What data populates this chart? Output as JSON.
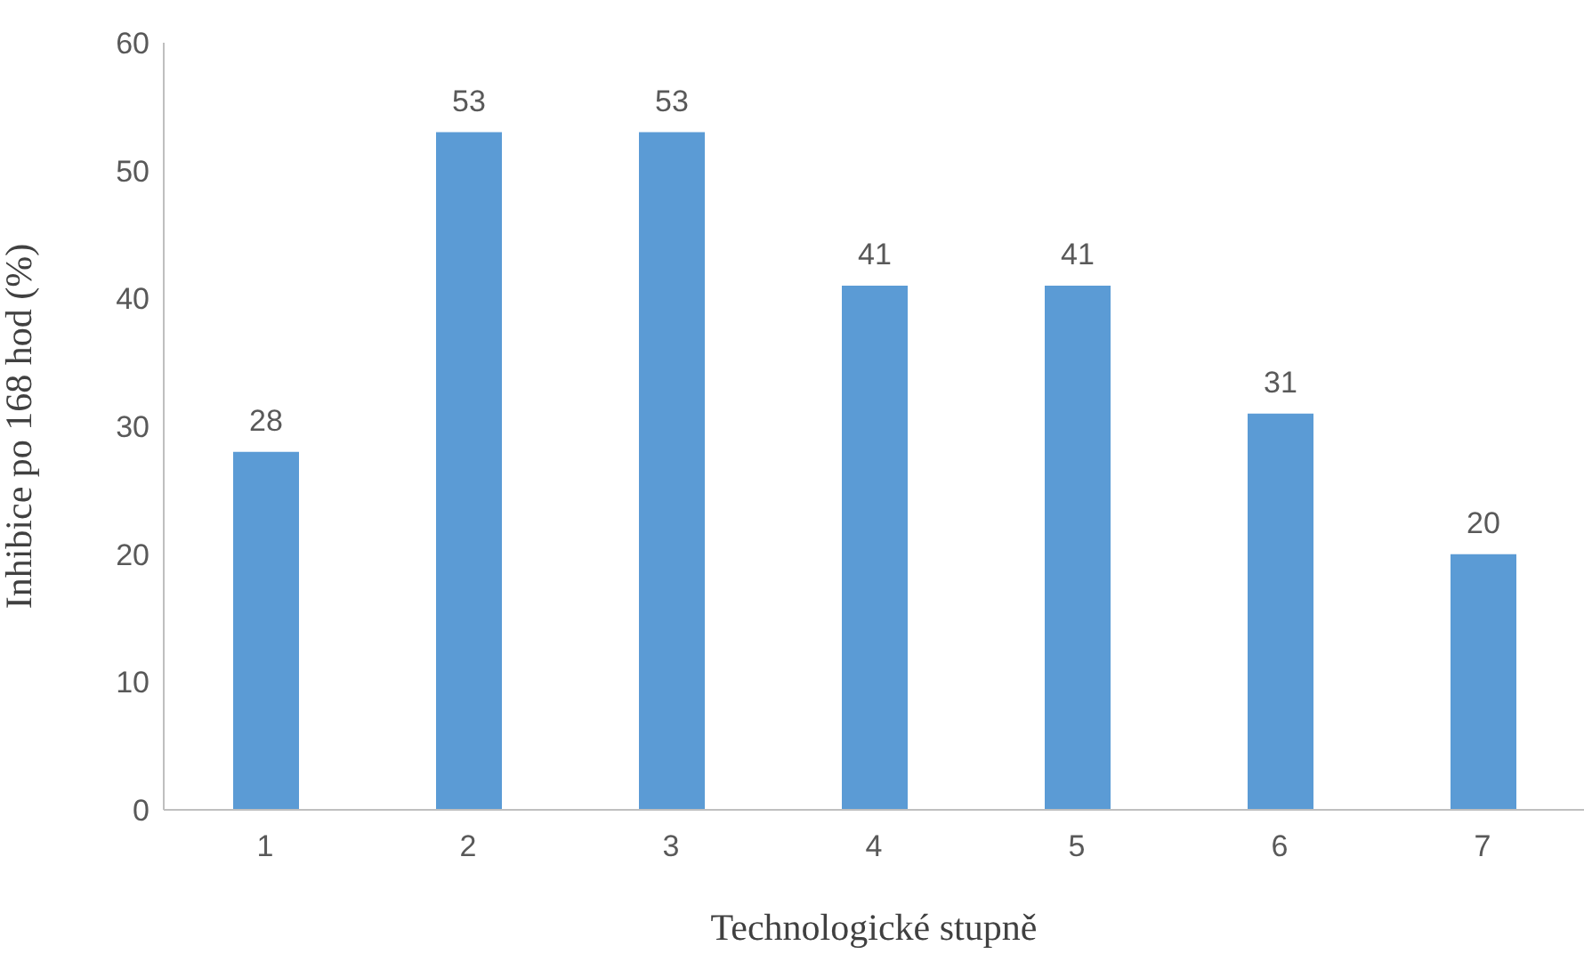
{
  "chart_data": {
    "type": "bar",
    "xlabel": "Technologické stupně",
    "ylabel": "Inhibice po 168 hod (%)",
    "categories": [
      "1",
      "2",
      "3",
      "4",
      "5",
      "6",
      "7"
    ],
    "values": [
      28,
      53,
      53,
      41,
      41,
      31,
      20
    ],
    "color": "#5b9bd5",
    "ylim": [
      0,
      60
    ],
    "yticks": [
      0,
      10,
      20,
      30,
      40,
      50,
      60
    ],
    "grid": false,
    "data_labels": true,
    "legend": false
  }
}
